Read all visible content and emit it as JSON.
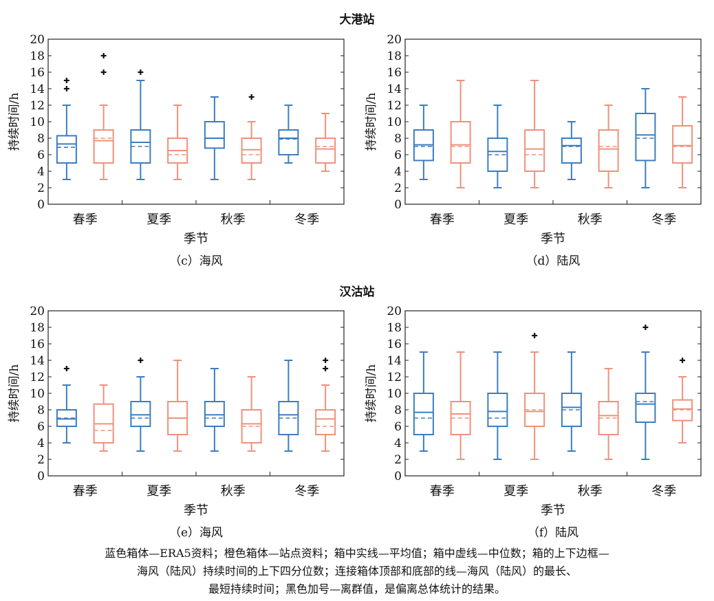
{
  "sections": [
    {
      "title": "大港站"
    },
    {
      "title": "汉沽站"
    }
  ],
  "colors": {
    "era5": "#3a7dc0",
    "station": "#f0907a",
    "outlier": "#111111"
  },
  "caption_lines": [
    "蓝色箱体—ERA5资料；橙色箱体—站点资料；箱中实线—平均值；箱中虚线—中位数；箱的上下边框—",
    "海风（陆风）持续时间的上下四分位数；连接箱体顶部和底部的线—海风（陆风）的最长、",
    "最短持续时间；黑色加号—离群值，是偏离总体统计的结果。"
  ],
  "chart_data": [
    {
      "type": "box",
      "station": "大港站",
      "title": "（c）海风",
      "xlabel": "季节",
      "ylabel": "持续时间/h",
      "ylim": [
        0,
        20
      ],
      "yticks": [
        "0",
        "2",
        "4",
        "6",
        "8",
        "10",
        "12",
        "14",
        "16",
        "18",
        "20"
      ],
      "categories": [
        "春季",
        "夏季",
        "秋季",
        "冬季"
      ],
      "series": [
        {
          "name": "ERA5",
          "boxes": [
            {
              "min": 3,
              "q1": 5,
              "median": 6.9,
              "mean": 7.3,
              "q3": 8.3,
              "max": 12,
              "outliers": [
                14,
                15
              ]
            },
            {
              "min": 3,
              "q1": 5,
              "median": 7.0,
              "mean": 7.5,
              "q3": 9,
              "max": 15,
              "outliers": [
                16
              ]
            },
            {
              "min": 3,
              "q1": 6.8,
              "median": 8.0,
              "mean": 8.0,
              "q3": 10,
              "max": 13,
              "outliers": []
            },
            {
              "min": 5,
              "q1": 6,
              "median": 7.9,
              "mean": 8.0,
              "q3": 9,
              "max": 12,
              "outliers": []
            }
          ]
        },
        {
          "name": "站点",
          "boxes": [
            {
              "min": 3,
              "q1": 5,
              "median": 8.0,
              "mean": 7.7,
              "q3": 9,
              "max": 12,
              "outliers": [
                16,
                18
              ]
            },
            {
              "min": 3,
              "q1": 5,
              "median": 6.0,
              "mean": 6.5,
              "q3": 8,
              "max": 12,
              "outliers": []
            },
            {
              "min": 3,
              "q1": 5,
              "median": 6.0,
              "mean": 6.6,
              "q3": 8,
              "max": 10,
              "outliers": [
                13
              ]
            },
            {
              "min": 4,
              "q1": 5,
              "median": 7.0,
              "mean": 6.7,
              "q3": 8,
              "max": 11,
              "outliers": []
            }
          ]
        }
      ]
    },
    {
      "type": "box",
      "station": "大港站",
      "title": "（d）陆风",
      "xlabel": "季节",
      "ylabel": "持续时间/h",
      "ylim": [
        0,
        20
      ],
      "yticks": [
        "0",
        "2",
        "4",
        "6",
        "8",
        "10",
        "12",
        "14",
        "16",
        "18",
        "20"
      ],
      "categories": [
        "春季",
        "夏季",
        "秋季",
        "冬季"
      ],
      "series": [
        {
          "name": "ERA5",
          "boxes": [
            {
              "min": 3,
              "q1": 5.3,
              "median": 7.0,
              "mean": 7.2,
              "q3": 9,
              "max": 12,
              "outliers": []
            },
            {
              "min": 2,
              "q1": 4,
              "median": 6.0,
              "mean": 6.4,
              "q3": 8,
              "max": 12,
              "outliers": []
            },
            {
              "min": 3,
              "q1": 5,
              "median": 7.0,
              "mean": 7.1,
              "q3": 8,
              "max": 10,
              "outliers": []
            },
            {
              "min": 2,
              "q1": 5.3,
              "median": 8.0,
              "mean": 8.4,
              "q3": 11,
              "max": 14,
              "outliers": []
            }
          ]
        },
        {
          "name": "站点",
          "boxes": [
            {
              "min": 2,
              "q1": 5,
              "median": 7.0,
              "mean": 7.2,
              "q3": 10,
              "max": 15,
              "outliers": []
            },
            {
              "min": 2,
              "q1": 4,
              "median": 6.0,
              "mean": 6.7,
              "q3": 9,
              "max": 15,
              "outliers": []
            },
            {
              "min": 2,
              "q1": 4,
              "median": 7.0,
              "mean": 6.7,
              "q3": 9,
              "max": 12,
              "outliers": []
            },
            {
              "min": 2,
              "q1": 5,
              "median": 7.0,
              "mean": 7.1,
              "q3": 9.5,
              "max": 13,
              "outliers": []
            }
          ]
        }
      ]
    },
    {
      "type": "box",
      "station": "汉沽站",
      "title": "（e）海风",
      "xlabel": "季节",
      "ylabel": "持续时间/h",
      "ylim": [
        0,
        20
      ],
      "yticks": [
        "0",
        "2",
        "4",
        "6",
        "8",
        "10",
        "12",
        "14",
        "16",
        "18",
        "20"
      ],
      "categories": [
        "春季",
        "夏季",
        "秋季",
        "冬季"
      ],
      "series": [
        {
          "name": "ERA5",
          "boxes": [
            {
              "min": 4,
              "q1": 6,
              "median": 7.0,
              "mean": 6.9,
              "q3": 8,
              "max": 11,
              "outliers": [
                13
              ]
            },
            {
              "min": 3,
              "q1": 6,
              "median": 7.0,
              "mean": 7.4,
              "q3": 9,
              "max": 12,
              "outliers": [
                14
              ]
            },
            {
              "min": 3,
              "q1": 6,
              "median": 7.0,
              "mean": 7.4,
              "q3": 9,
              "max": 13,
              "outliers": []
            },
            {
              "min": 3,
              "q1": 5,
              "median": 7.0,
              "mean": 7.4,
              "q3": 9,
              "max": 14,
              "outliers": []
            }
          ]
        },
        {
          "name": "站点",
          "boxes": [
            {
              "min": 3,
              "q1": 4,
              "median": 5.5,
              "mean": 6.3,
              "q3": 8.7,
              "max": 11,
              "outliers": []
            },
            {
              "min": 3,
              "q1": 5,
              "median": 7.0,
              "mean": 7.0,
              "q3": 9,
              "max": 14,
              "outliers": []
            },
            {
              "min": 3,
              "q1": 4,
              "median": 6.0,
              "mean": 6.3,
              "q3": 8,
              "max": 12,
              "outliers": []
            },
            {
              "min": 3,
              "q1": 5,
              "median": 6.0,
              "mean": 6.9,
              "q3": 8,
              "max": 11,
              "outliers": [
                13,
                14
              ]
            }
          ]
        }
      ]
    },
    {
      "type": "box",
      "station": "汉沽站",
      "title": "（f）陆风",
      "xlabel": "季节",
      "ylabel": "持续时间/h",
      "ylim": [
        0,
        20
      ],
      "yticks": [
        "0",
        "2",
        "4",
        "6",
        "8",
        "10",
        "12",
        "14",
        "16",
        "18",
        "20"
      ],
      "categories": [
        "春季",
        "夏季",
        "秋季",
        "冬季"
      ],
      "series": [
        {
          "name": "ERA5",
          "boxes": [
            {
              "min": 3,
              "q1": 5,
              "median": 7.0,
              "mean": 7.7,
              "q3": 10,
              "max": 15,
              "outliers": []
            },
            {
              "min": 2,
              "q1": 6,
              "median": 7.0,
              "mean": 7.8,
              "q3": 10,
              "max": 15,
              "outliers": []
            },
            {
              "min": 3,
              "q1": 6,
              "median": 8.0,
              "mean": 8.3,
              "q3": 10,
              "max": 15,
              "outliers": []
            },
            {
              "min": 2,
              "q1": 6.5,
              "median": 9.0,
              "mean": 8.7,
              "q3": 10,
              "max": 15,
              "outliers": [
                18
              ]
            }
          ]
        },
        {
          "name": "站点",
          "boxes": [
            {
              "min": 2,
              "q1": 5,
              "median": 7.0,
              "mean": 7.5,
              "q3": 9,
              "max": 15,
              "outliers": []
            },
            {
              "min": 2,
              "q1": 6,
              "median": 8.0,
              "mean": 7.8,
              "q3": 10,
              "max": 15,
              "outliers": [
                17
              ]
            },
            {
              "min": 2,
              "q1": 5,
              "median": 7.0,
              "mean": 7.3,
              "q3": 9,
              "max": 13,
              "outliers": []
            },
            {
              "min": 4,
              "q1": 6.7,
              "median": 8.0,
              "mean": 8.1,
              "q3": 9.2,
              "max": 12,
              "outliers": [
                14
              ]
            }
          ]
        }
      ]
    }
  ]
}
